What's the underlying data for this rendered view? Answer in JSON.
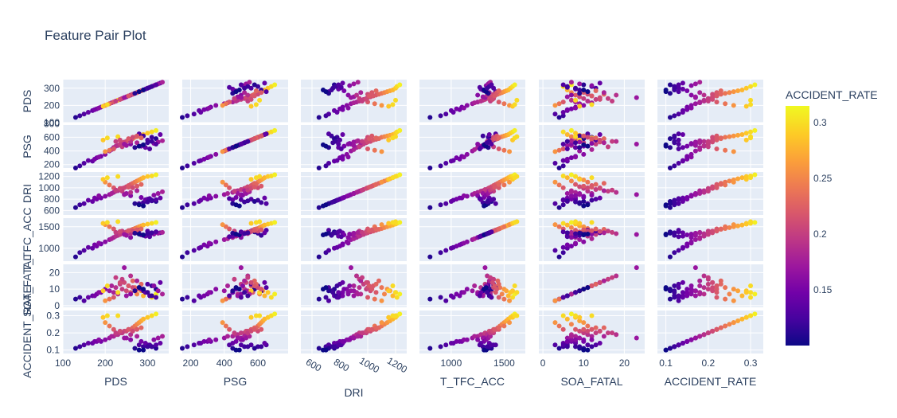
{
  "chart_data": {
    "type": "scatter",
    "title": "Feature Pair Plot",
    "dimensions": [
      {
        "name": "PDS",
        "range": [
          100,
          350
        ],
        "ticks": [
          100,
          200,
          300
        ],
        "tick_labels": [
          "100",
          "200",
          "300"
        ],
        "x_tick_labels": [
          "100",
          "200",
          "300"
        ],
        "x_ticks": [
          100,
          200,
          300
        ]
      },
      {
        "name": "PSG",
        "range": [
          150,
          780
        ],
        "ticks": [
          200,
          400,
          600,
          800
        ],
        "tick_labels": [
          "200",
          "400",
          "600",
          "800"
        ],
        "x_ticks": [
          200,
          400,
          600
        ],
        "x_tick_labels": [
          "200",
          "400",
          "600"
        ]
      },
      {
        "name": "DRI",
        "range": [
          520,
          1280
        ],
        "ticks": [
          600,
          800,
          1000,
          1200
        ],
        "tick_labels": [
          "600",
          "800",
          "1000",
          "1200"
        ],
        "x_ticks": [
          600,
          800,
          1000,
          1200
        ],
        "x_tick_labels": [
          "600",
          "800",
          "1000",
          "1200"
        ]
      },
      {
        "name": "T_TFC_ACC",
        "range": [
          700,
          1700
        ],
        "ticks": [
          1000,
          1500
        ],
        "tick_labels": [
          "1000",
          "1500"
        ],
        "x_ticks": [
          1000,
          1500
        ],
        "x_tick_labels": [
          "1000",
          "1500"
        ]
      },
      {
        "name": "SOA_FATAL",
        "range": [
          -1,
          25
        ],
        "ticks": [
          0,
          10,
          20
        ],
        "tick_labels": [
          "0",
          "10",
          "20"
        ],
        "x_ticks": [
          0,
          10,
          20
        ],
        "x_tick_labels": [
          "0",
          "10",
          "20"
        ]
      },
      {
        "name": "ACCIDENT_RATE",
        "range": [
          0.08,
          0.33
        ],
        "ticks": [
          0.1,
          0.2,
          0.3
        ],
        "tick_labels": [
          "0.1",
          "0.2",
          "0.3"
        ],
        "x_ticks": [
          0.1,
          0.2,
          0.3
        ],
        "x_tick_labels": [
          "0.1",
          "0.2",
          "0.3"
        ]
      }
    ],
    "y_tick_overrides": {
      "PDS": [
        "100",
        "200",
        "300"
      ],
      "PSG": [
        "200",
        "400",
        "600",
        "800"
      ],
      "DRI": [
        "600",
        "800",
        "1000",
        "1200"
      ],
      "T_TFC_ACC": [
        "1000",
        "1500"
      ],
      "SOA_FATAL": [
        "0",
        "10",
        "20"
      ],
      "ACCIDENT_RATE": [
        "0.1",
        "0.2",
        "0.3"
      ]
    },
    "colorbar": {
      "title": "ACCIDENT_RATE",
      "range": [
        0.1,
        0.315
      ],
      "ticks": [
        0.15,
        0.2,
        0.25,
        0.3
      ],
      "tick_labels": [
        "0.15",
        "0.2",
        "0.25",
        "0.3"
      ],
      "colorscale": [
        "#0d0887",
        "#46039f",
        "#7201a8",
        "#9c179e",
        "#bd3786",
        "#d8576b",
        "#ed7953",
        "#fb9f3a",
        "#fdca26",
        "#f0f921"
      ]
    },
    "colors": {
      "plot_bg": "#e5ecf6",
      "grid": "#ffffff",
      "text": "#2a3f5f"
    },
    "points": [
      [
        130,
        150,
        650,
        800,
        4,
        0.11
      ],
      [
        140,
        180,
        700,
        900,
        5,
        0.12
      ],
      [
        150,
        220,
        720,
        950,
        3,
        0.13
      ],
      [
        170,
        250,
        760,
        1000,
        6,
        0.14
      ],
      [
        180,
        300,
        800,
        1050,
        7,
        0.15
      ],
      [
        190,
        320,
        820,
        1100,
        8,
        0.15
      ],
      [
        200,
        350,
        850,
        1150,
        10,
        0.16
      ],
      [
        210,
        400,
        880,
        1200,
        9,
        0.17
      ],
      [
        215,
        420,
        900,
        1220,
        12,
        0.18
      ],
      [
        220,
        450,
        920,
        1250,
        8,
        0.18
      ],
      [
        225,
        470,
        940,
        1280,
        11,
        0.19
      ],
      [
        230,
        480,
        950,
        1300,
        7,
        0.19
      ],
      [
        235,
        500,
        970,
        1320,
        13,
        0.2
      ],
      [
        240,
        520,
        990,
        1350,
        10,
        0.2
      ],
      [
        245,
        530,
        1000,
        1360,
        14,
        0.21
      ],
      [
        250,
        540,
        1020,
        1380,
        9,
        0.21
      ],
      [
        255,
        560,
        1040,
        1400,
        12,
        0.22
      ],
      [
        260,
        570,
        1060,
        1420,
        8,
        0.22
      ],
      [
        265,
        580,
        1080,
        1440,
        15,
        0.23
      ],
      [
        270,
        600,
        1100,
        1460,
        11,
        0.24
      ],
      [
        275,
        610,
        1120,
        1480,
        7,
        0.25
      ],
      [
        280,
        620,
        1140,
        1500,
        10,
        0.26
      ],
      [
        285,
        630,
        1160,
        1520,
        9,
        0.27
      ],
      [
        290,
        640,
        1180,
        1540,
        6,
        0.28
      ],
      [
        300,
        660,
        1200,
        1560,
        8,
        0.29
      ],
      [
        310,
        680,
        1210,
        1580,
        5,
        0.3
      ],
      [
        320,
        700,
        1230,
        1600,
        7,
        0.31
      ],
      [
        300,
        560,
        800,
        1400,
        13,
        0.13
      ],
      [
        310,
        600,
        780,
        1350,
        12,
        0.12
      ],
      [
        320,
        580,
        760,
        1380,
        10,
        0.11
      ],
      [
        290,
        620,
        740,
        1300,
        9,
        0.12
      ],
      [
        280,
        650,
        720,
        1420,
        11,
        0.13
      ],
      [
        330,
        640,
        820,
        1360,
        14,
        0.14
      ],
      [
        260,
        500,
        860,
        1250,
        7,
        0.16
      ],
      [
        250,
        480,
        900,
        1300,
        6,
        0.17
      ],
      [
        240,
        460,
        940,
        1400,
        16,
        0.2
      ],
      [
        220,
        430,
        1000,
        1450,
        5,
        0.22
      ],
      [
        210,
        410,
        1050,
        1500,
        4,
        0.24
      ],
      [
        200,
        390,
        1100,
        1550,
        3,
        0.26
      ],
      [
        195,
        560,
        1150,
        1580,
        9,
        0.29
      ],
      [
        205,
        590,
        1180,
        1600,
        12,
        0.3
      ],
      [
        230,
        610,
        1200,
        1620,
        8,
        0.3
      ],
      [
        245,
        500,
        880,
        1320,
        23,
        0.17
      ],
      [
        260,
        540,
        920,
        1340,
        18,
        0.19
      ],
      [
        275,
        520,
        950,
        1360,
        15,
        0.18
      ],
      [
        285,
        470,
        830,
        1310,
        10,
        0.15
      ],
      [
        295,
        450,
        790,
        1280,
        8,
        0.14
      ],
      [
        305,
        430,
        810,
        1270,
        6,
        0.13
      ],
      [
        315,
        510,
        870,
        1330,
        12,
        0.16
      ],
      [
        325,
        530,
        900,
        1350,
        9,
        0.17
      ],
      [
        335,
        550,
        930,
        1370,
        7,
        0.18
      ],
      [
        160,
        260,
        780,
        1020,
        5,
        0.14
      ],
      [
        175,
        280,
        820,
        1080,
        6,
        0.15
      ],
      [
        185,
        310,
        860,
        1120,
        8,
        0.16
      ],
      [
        265,
        600,
        1000,
        1400,
        11,
        0.21
      ],
      [
        275,
        620,
        1030,
        1430,
        10,
        0.22
      ],
      [
        285,
        590,
        1060,
        1450,
        13,
        0.23
      ],
      [
        225,
        540,
        960,
        1370,
        17,
        0.2
      ],
      [
        235,
        560,
        990,
        1390,
        14,
        0.21
      ],
      [
        255,
        580,
        1010,
        1410,
        12,
        0.22
      ],
      [
        270,
        450,
        720,
        1350,
        9,
        0.11
      ],
      [
        280,
        470,
        700,
        1330,
        11,
        0.1
      ],
      [
        290,
        490,
        680,
        1310,
        10,
        0.1
      ],
      [
        300,
        520,
        750,
        1340,
        8,
        0.12
      ],
      [
        310,
        540,
        770,
        1360,
        6,
        0.12
      ],
      [
        320,
        500,
        790,
        1380,
        5,
        0.13
      ]
    ]
  }
}
